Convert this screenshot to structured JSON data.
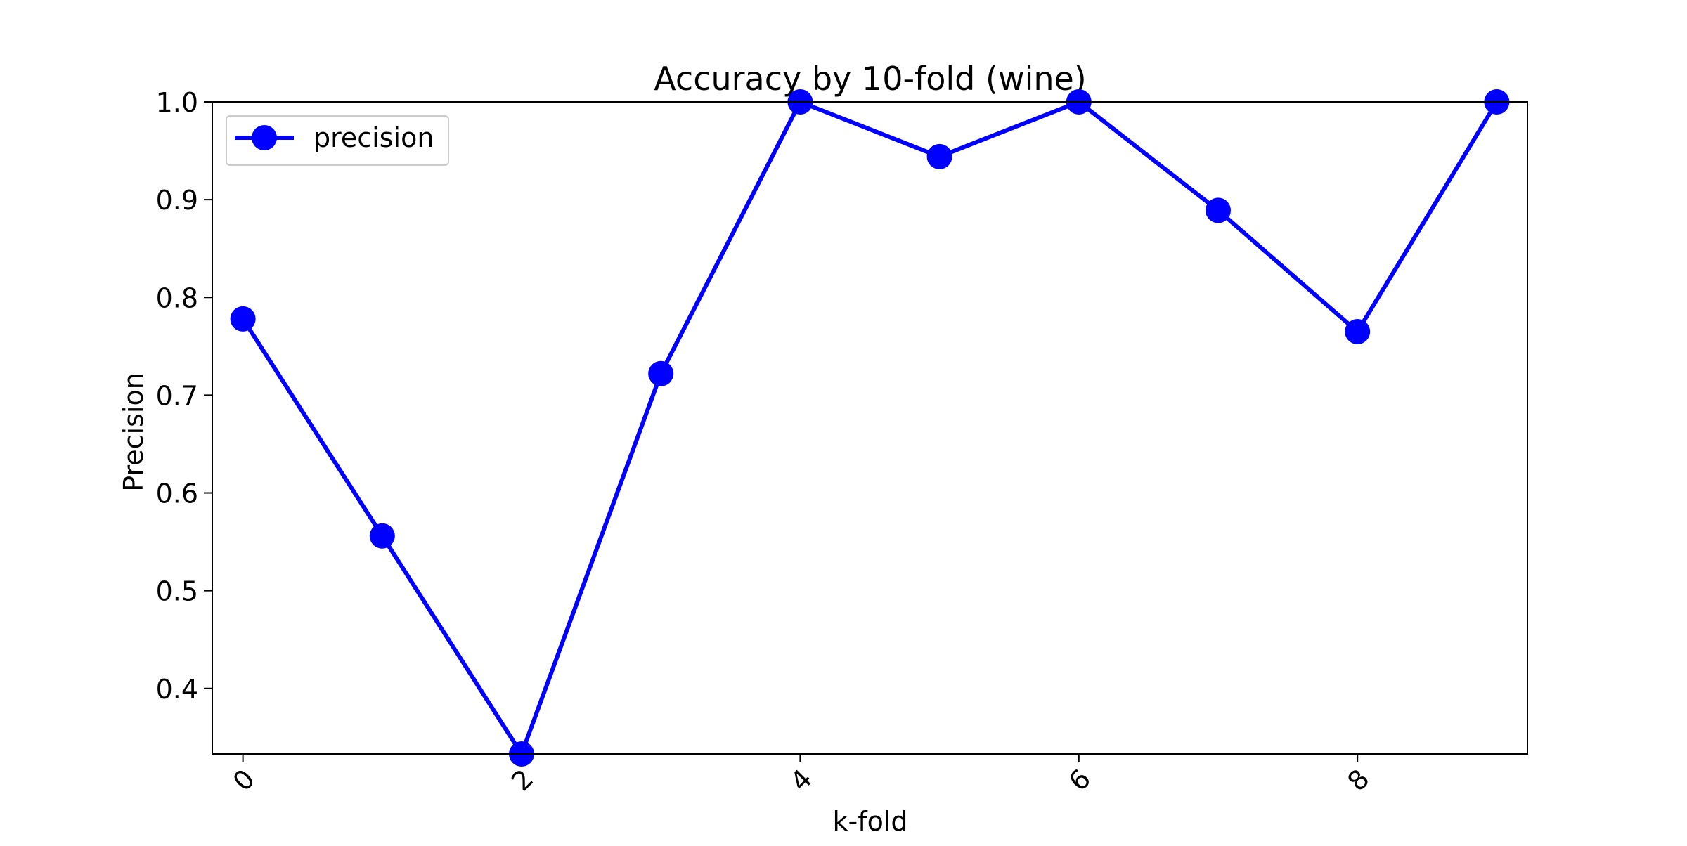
{
  "chart_data": {
    "type": "line",
    "title": "Accuracy by 10-fold (wine)",
    "xlabel": "k-fold",
    "ylabel": "Precision",
    "x": [
      0,
      1,
      2,
      3,
      4,
      5,
      6,
      7,
      8,
      9
    ],
    "series": [
      {
        "name": "precision",
        "values": [
          0.778,
          0.556,
          0.333,
          0.722,
          1.0,
          0.944,
          1.0,
          0.889,
          0.765,
          1.0
        ],
        "color": "#0000ff",
        "marker": "circle"
      }
    ],
    "xlim": [
      -0.22,
      9.22
    ],
    "ylim": [
      0.333,
      1.0
    ],
    "xticks": [
      0,
      2,
      4,
      6,
      8
    ],
    "xtick_labels": [
      "0",
      "2",
      "4",
      "6",
      "8"
    ],
    "xtick_rotation": -45,
    "yticks": [
      0.4,
      0.5,
      0.6,
      0.7,
      0.8,
      0.9,
      1.0
    ],
    "ytick_labels": [
      "0.4",
      "0.5",
      "0.6",
      "0.7",
      "0.8",
      "0.9",
      "1.0"
    ],
    "grid": false,
    "legend": {
      "position": "upper left",
      "entries": [
        "precision"
      ]
    }
  }
}
